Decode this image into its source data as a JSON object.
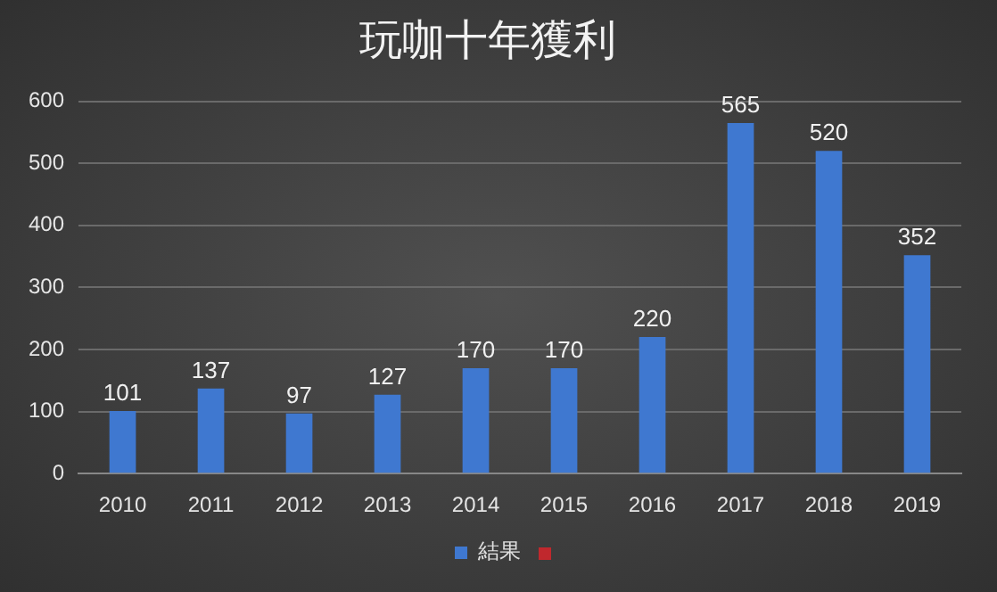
{
  "chart_data": {
    "type": "bar",
    "title": "玩咖十年獲利",
    "categories": [
      "2010",
      "2011",
      "2012",
      "2013",
      "2014",
      "2015",
      "2016",
      "2017",
      "2018",
      "2019"
    ],
    "series": [
      {
        "name": "結果",
        "color": "#3f78d0",
        "values": [
          101,
          137,
          97,
          127,
          170,
          170,
          220,
          565,
          520,
          352
        ]
      }
    ],
    "ylim": [
      0,
      600
    ],
    "yticks": [
      0,
      100,
      200,
      300,
      400,
      500,
      600
    ],
    "grid": "y",
    "legend": "bottom",
    "data_labels": true
  }
}
